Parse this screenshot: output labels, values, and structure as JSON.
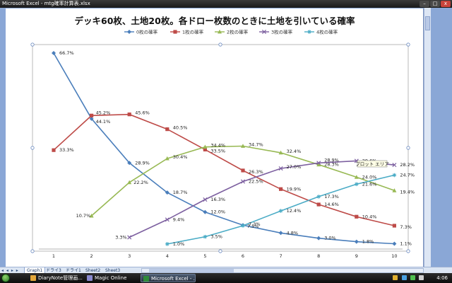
{
  "window": {
    "title": "Microsoft Excel - mtg確率計算表.xlsx",
    "controls": {
      "minimize": "–",
      "maximize": "□",
      "close": "x"
    }
  },
  "sheet_tabs": {
    "nav": "◂ ◂ ▸ ▸",
    "tabs": [
      "Graph1",
      "ドライ3",
      "ドライ1",
      "Sheet2",
      "Sheet3"
    ],
    "active": "Graph1"
  },
  "taskbar": {
    "items": [
      {
        "label": "DiaryNote管理画...",
        "color": "#e4a73a"
      },
      {
        "label": "Magic Online",
        "color": "#8a8ad0"
      },
      {
        "label": "Microsoft Excel - ...",
        "color": "#2f8a3a",
        "active": true
      }
    ],
    "clock": "4:06",
    "tray_colors": [
      "#e0b030",
      "#4aa0e0",
      "#50c050",
      "#d0d0d0"
    ]
  },
  "chart_tooltip": "プロット エリア",
  "chart_data": {
    "type": "line",
    "title": "デッキ60枚、土地20枚。各ドロー枚数のときに土地を引いている確率",
    "x": [
      1,
      2,
      3,
      4,
      5,
      6,
      7,
      8,
      9,
      10
    ],
    "xlim": [
      1,
      10
    ],
    "ylim": [
      0,
      0.72
    ],
    "grid": false,
    "legend_position": "top",
    "series": [
      {
        "name": "0枚の確率",
        "color": "#4a7ebb",
        "marker": "diamond",
        "values": [
          0.667,
          0.441,
          0.289,
          0.187,
          0.12,
          0.075,
          0.048,
          0.03,
          0.018,
          0.011
        ],
        "labels": [
          "66.7%",
          "44.1%",
          "28.9%",
          "18.7%",
          "12.0%",
          "7.5%",
          "4.8%",
          "3.0%",
          "1.8%",
          "1.1%"
        ]
      },
      {
        "name": "1枚の確率",
        "color": "#be4b48",
        "marker": "square",
        "values": [
          0.333,
          0.452,
          0.456,
          0.405,
          0.335,
          0.263,
          0.199,
          0.146,
          0.104,
          0.073
        ],
        "labels": [
          "33.3%",
          "45.2%",
          "45.6%",
          "40.5%",
          "33.5%",
          "26.3%",
          "19.9%",
          "14.6%",
          "10.4%",
          "7.3%"
        ]
      },
      {
        "name": "2枚の確率",
        "color": "#98b954",
        "marker": "triangle",
        "values": [
          null,
          0.107,
          0.222,
          0.304,
          0.344,
          0.347,
          0.324,
          0.283,
          0.24,
          0.194
        ],
        "labels": [
          null,
          "10.7%",
          "22.2%",
          "30.4%",
          "34.4%",
          "34.7%",
          "32.4%",
          "28.3%",
          "24.0%",
          "19.4%"
        ]
      },
      {
        "name": "3枚の確率",
        "color": "#7d60a0",
        "marker": "x",
        "values": [
          null,
          null,
          0.033,
          0.094,
          0.163,
          0.225,
          0.27,
          0.289,
          0.296,
          0.282
        ],
        "labels": [
          null,
          null,
          "3.3%",
          "9.4%",
          "16.3%",
          "22.5%",
          "27.0%",
          "28.9%",
          "29.6%",
          "28.2%"
        ]
      },
      {
        "name": "4枚の確率",
        "color": "#4bacc6",
        "marker": "star",
        "values": [
          null,
          null,
          null,
          0.01,
          0.035,
          0.073,
          0.124,
          0.173,
          0.216,
          0.247
        ],
        "labels": [
          null,
          null,
          null,
          "1.0%",
          "3.5%",
          "7.3%",
          "12.4%",
          "17.3%",
          "21.6%",
          "24.7%"
        ]
      }
    ]
  }
}
